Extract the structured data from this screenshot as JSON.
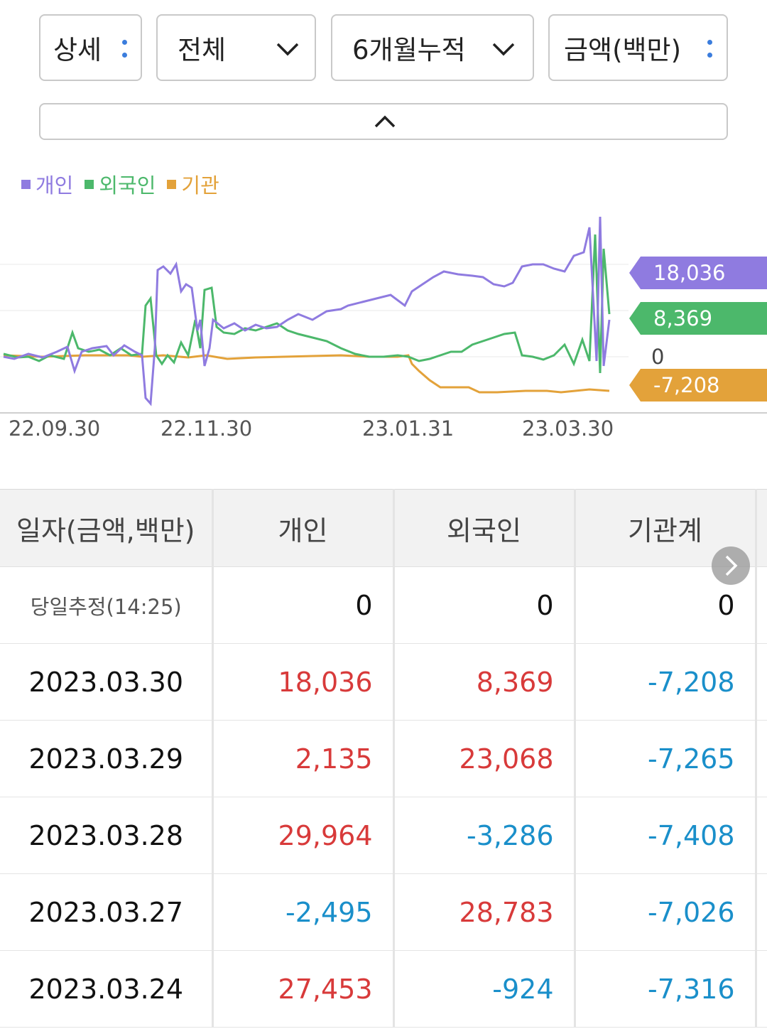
{
  "controls": {
    "detail_label": "상세",
    "scope_label": "전체",
    "period_label": "6개월누적",
    "unit_label": "금액(백만)"
  },
  "legend": [
    {
      "label": "개인",
      "color": "#8f7be0"
    },
    {
      "label": "외국인",
      "color": "#4cb86b"
    },
    {
      "label": "기관",
      "color": "#e3a23a"
    }
  ],
  "chart_data": {
    "type": "line",
    "x_ticks": [
      "22.09.30",
      "22.11.30",
      "23.01.31",
      "23.03.30"
    ],
    "zero_label": "0",
    "series": [
      {
        "name": "개인",
        "color": "#8f7be0",
        "last_value_label": "18,036",
        "last_value": 18036
      },
      {
        "name": "외국인",
        "color": "#4cb86b",
        "last_value_label": "8,369",
        "last_value": 8369
      },
      {
        "name": "기관",
        "color": "#e3a23a",
        "last_value_label": "-7,208",
        "last_value": -7208
      }
    ]
  },
  "table": {
    "headers": [
      "일자(금액,백만)",
      "개인",
      "외국인",
      "기관계"
    ],
    "rows": [
      {
        "date": "당일추정(14:25)",
        "individual": "0",
        "foreign": "0",
        "institution": "0"
      },
      {
        "date": "2023.03.30",
        "individual": "18,036",
        "foreign": "8,369",
        "institution": "-7,208"
      },
      {
        "date": "2023.03.29",
        "individual": "2,135",
        "foreign": "23,068",
        "institution": "-7,265"
      },
      {
        "date": "2023.03.28",
        "individual": "29,964",
        "foreign": "-3,286",
        "institution": "-7,408"
      },
      {
        "date": "2023.03.27",
        "individual": "-2,495",
        "foreign": "28,783",
        "institution": "-7,026"
      },
      {
        "date": "2023.03.24",
        "individual": "27,453",
        "foreign": "-924",
        "institution": "-7,316"
      }
    ]
  }
}
